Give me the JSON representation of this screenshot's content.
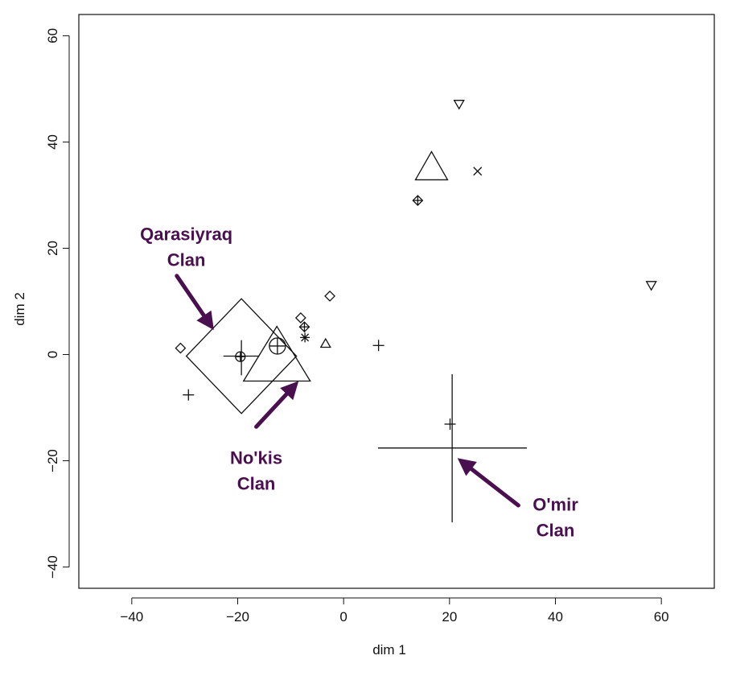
{
  "chart_data": {
    "type": "scatter",
    "xlabel": "dim 1",
    "ylabel": "dim 2",
    "xlim": [
      -50,
      70
    ],
    "ylim": [
      -44,
      64
    ],
    "x_ticks": [
      -40,
      -20,
      0,
      20,
      40,
      60
    ],
    "y_ticks": [
      -40,
      -20,
      0,
      20,
      40,
      60
    ],
    "tick_labels": {
      "x": [
        "−40",
        "−20",
        "0",
        "20",
        "40",
        "60"
      ],
      "y": [
        "−40",
        "−20",
        "0",
        "20",
        "40",
        "60"
      ]
    },
    "grid": false,
    "annotation_color": "#4a0f4f",
    "points": [
      {
        "shape": "diamond",
        "x": -30.8,
        "y": 1.2,
        "size": "small"
      },
      {
        "shape": "plus",
        "x": -29.3,
        "y": -7.6,
        "size": "small"
      },
      {
        "shape": "circle-plus",
        "x": -19.5,
        "y": -0.4,
        "size": "small"
      },
      {
        "shape": "circle-plus",
        "x": -12.5,
        "y": 1.6,
        "size": "medium"
      },
      {
        "shape": "diamond",
        "x": -8.1,
        "y": 6.9,
        "size": "small"
      },
      {
        "shape": "diamond-plus",
        "x": -7.4,
        "y": 5.2,
        "size": "small"
      },
      {
        "shape": "asterisk",
        "x": -7.3,
        "y": 3.2,
        "size": "small"
      },
      {
        "shape": "diamond",
        "x": -2.6,
        "y": 11.0,
        "size": "small"
      },
      {
        "shape": "triangle-up",
        "x": -3.4,
        "y": 2.0,
        "size": "small"
      },
      {
        "shape": "plus",
        "x": 6.6,
        "y": 1.7,
        "size": "small"
      },
      {
        "shape": "diamond-plus",
        "x": 14.0,
        "y": 29.0,
        "size": "small"
      },
      {
        "shape": "triangle-up",
        "x": 16.6,
        "y": 35.0,
        "size": "large"
      },
      {
        "shape": "triangle-down",
        "x": 21.8,
        "y": 47.2,
        "size": "small"
      },
      {
        "shape": "cross",
        "x": 25.3,
        "y": 34.5,
        "size": "small"
      },
      {
        "shape": "plus",
        "x": 20.1,
        "y": -13.1,
        "size": "small"
      },
      {
        "shape": "triangle-down",
        "x": 58.1,
        "y": 13.1,
        "size": "small"
      }
    ],
    "clan_markers": [
      {
        "name": "Qarasiyraq Clan",
        "shape": "diamond",
        "x": -19.3,
        "y": -0.3,
        "half_w": 10.4,
        "half_h": 10.8
      },
      {
        "name": "No'kis Clan",
        "shape": "triangle-up",
        "x": -12.6,
        "y": -1.3,
        "half_w": 6.3,
        "h": 10.3
      },
      {
        "name": "O'mir Clan",
        "shape": "plus",
        "x": 20.5,
        "y": -17.6,
        "x_from": 6.5,
        "x_to": 34.6,
        "y_from": -31.6,
        "y_to": -3.7
      }
    ],
    "annotations": [
      {
        "lines": [
          "Qarasiyraq",
          "Clan"
        ],
        "label_x": -29.7,
        "label_y": 21.5,
        "arrow_from": [
          -31.5,
          14.8
        ],
        "arrow_to": [
          -24.5,
          4.6
        ]
      },
      {
        "lines": [
          "No'kis",
          "Clan"
        ],
        "label_x": -16.5,
        "label_y": -20.6,
        "arrow_from": [
          -16.5,
          -13.6
        ],
        "arrow_to": [
          -8.5,
          -5.0
        ]
      },
      {
        "lines": [
          "O'mir",
          "Clan"
        ],
        "label_x": 40.0,
        "label_y": -29.4,
        "arrow_from": [
          33.0,
          -28.4
        ],
        "arrow_to": [
          21.5,
          -19.5
        ]
      }
    ]
  }
}
